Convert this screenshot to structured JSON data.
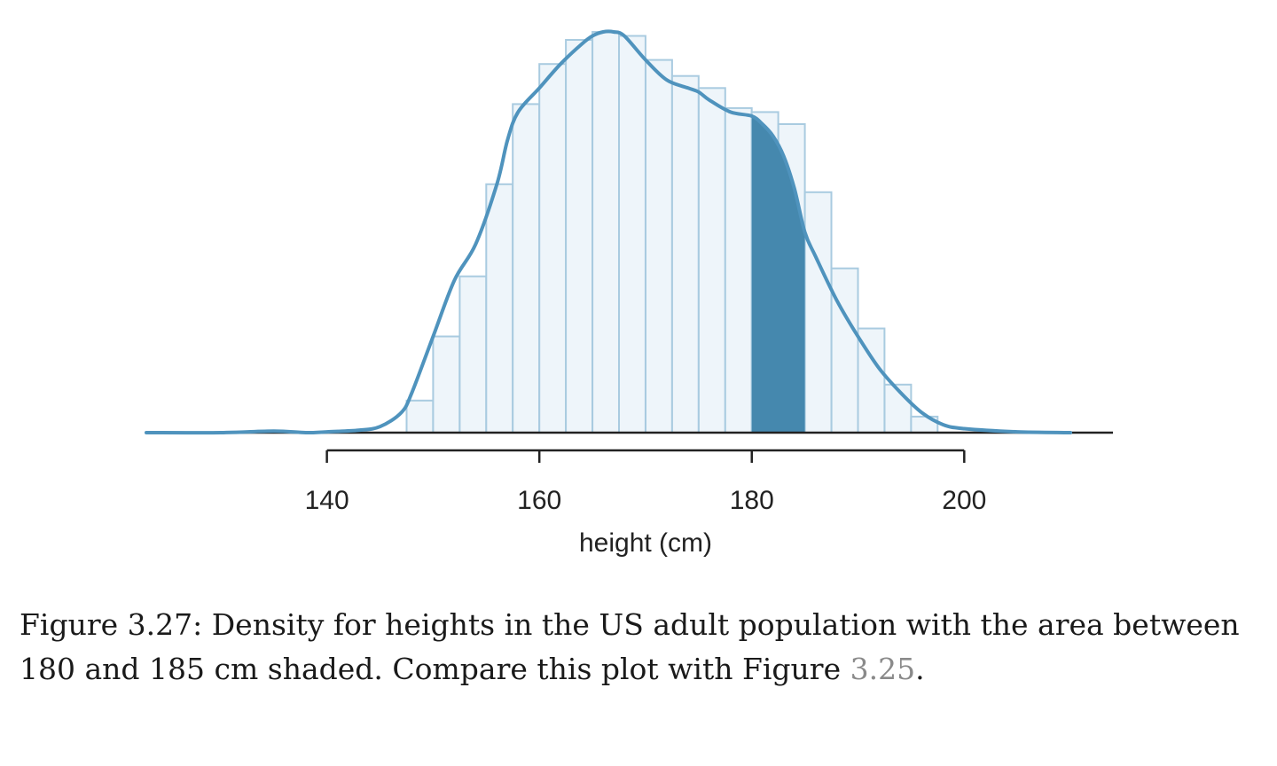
{
  "chart_data": {
    "type": "histogram",
    "xlabel": "height (cm)",
    "x_ticks": [
      140,
      160,
      180,
      200
    ],
    "xlim": [
      123,
      214
    ],
    "bin_width": 2.5,
    "bins": [
      {
        "x0": 147.5,
        "x1": 150,
        "density": 0.08
      },
      {
        "x0": 150,
        "x1": 152.5,
        "density": 0.24
      },
      {
        "x0": 152.5,
        "x1": 155,
        "density": 0.39
      },
      {
        "x0": 155,
        "x1": 157.5,
        "density": 0.62
      },
      {
        "x0": 157.5,
        "x1": 160,
        "density": 0.82
      },
      {
        "x0": 160,
        "x1": 162.5,
        "density": 0.92
      },
      {
        "x0": 162.5,
        "x1": 165,
        "density": 0.98
      },
      {
        "x0": 165,
        "x1": 167.5,
        "density": 1.0
      },
      {
        "x0": 167.5,
        "x1": 170,
        "density": 0.99
      },
      {
        "x0": 170,
        "x1": 172.5,
        "density": 0.93
      },
      {
        "x0": 172.5,
        "x1": 175,
        "density": 0.89
      },
      {
        "x0": 175,
        "x1": 177.5,
        "density": 0.86
      },
      {
        "x0": 177.5,
        "x1": 180,
        "density": 0.81
      },
      {
        "x0": 180,
        "x1": 182.5,
        "density": 0.8
      },
      {
        "x0": 182.5,
        "x1": 185,
        "density": 0.77
      },
      {
        "x0": 185,
        "x1": 187.5,
        "density": 0.6
      },
      {
        "x0": 187.5,
        "x1": 190,
        "density": 0.41
      },
      {
        "x0": 190,
        "x1": 192.5,
        "density": 0.26
      },
      {
        "x0": 192.5,
        "x1": 195,
        "density": 0.12
      },
      {
        "x0": 195,
        "x1": 197.5,
        "density": 0.04
      }
    ],
    "density_curve": {
      "x": [
        123,
        130,
        135,
        138,
        140,
        143,
        145,
        147,
        148,
        150,
        152,
        154,
        156,
        157,
        158,
        160,
        162,
        164,
        165,
        166,
        167,
        168,
        170,
        172,
        174,
        175,
        176,
        178,
        180,
        181,
        182,
        183,
        184,
        185,
        186,
        188,
        190,
        192,
        194,
        196,
        198,
        200,
        205,
        210
      ],
      "y": [
        0.0,
        0.0,
        0.004,
        0.0,
        0.002,
        0.006,
        0.015,
        0.05,
        0.1,
        0.24,
        0.38,
        0.47,
        0.62,
        0.73,
        0.8,
        0.86,
        0.92,
        0.97,
        0.99,
        1.0,
        1.0,
        0.99,
        0.93,
        0.88,
        0.86,
        0.85,
        0.83,
        0.8,
        0.79,
        0.77,
        0.74,
        0.69,
        0.61,
        0.5,
        0.44,
        0.33,
        0.24,
        0.16,
        0.1,
        0.05,
        0.02,
        0.01,
        0.002,
        0.0
      ]
    },
    "shaded_range": [
      180,
      185
    ],
    "colors": {
      "curve": "#4f93bd",
      "shade": "#4588ae",
      "bar_fill": "#eef5fa",
      "bar_stroke": "#a9cbe0",
      "axis": "#222222"
    }
  },
  "caption": {
    "text": "Figure 3.27: Density for heights in the US adult population with the area between 180 and 185 cm shaded. Compare this plot with Figure ",
    "ref": "3.25",
    "end": "."
  }
}
